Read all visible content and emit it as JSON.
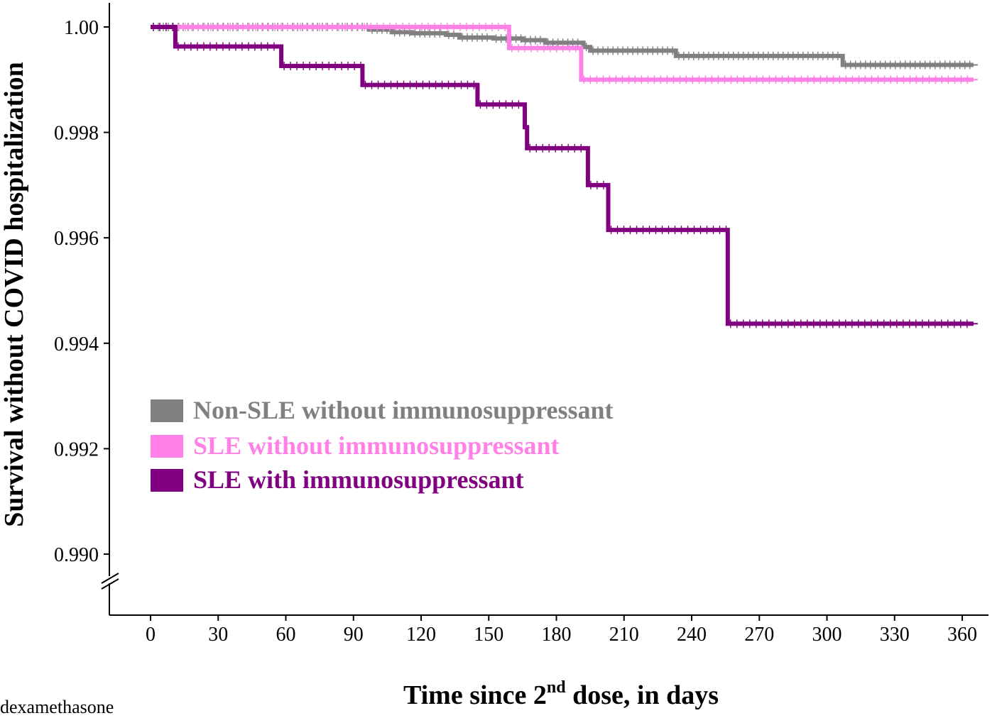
{
  "chart_data": {
    "type": "line",
    "step": true,
    "title": "",
    "xlabel": {
      "prefix": "Time since 2",
      "sup": "nd",
      "suffix": " dose, in days"
    },
    "ylabel": "Survival without COVID hospitalization",
    "xlim": [
      0,
      365
    ],
    "ylim": [
      0.989,
      1.0005
    ],
    "axis_break": true,
    "grid": false,
    "legend_position": "left-center",
    "x_ticks": [
      0,
      30,
      60,
      90,
      120,
      150,
      180,
      210,
      240,
      270,
      300,
      330,
      360
    ],
    "y_ticks": [
      {
        "value": 0.99,
        "label": "0.990"
      },
      {
        "value": 0.992,
        "label": "0.992"
      },
      {
        "value": 0.994,
        "label": "0.994"
      },
      {
        "value": 0.996,
        "label": "0.996"
      },
      {
        "value": 0.998,
        "label": "0.998"
      },
      {
        "value": 1.0,
        "label": "1.00"
      }
    ],
    "series": [
      {
        "name": "Non-SLE without immunosuppressant",
        "color": "#808080",
        "x": [
          0,
          97,
          107,
          116,
          131,
          137,
          152,
          165,
          175,
          192,
          195,
          233,
          307,
          365
        ],
        "y": [
          1.0,
          0.99995,
          0.9999,
          0.99988,
          0.99985,
          0.9998,
          0.99978,
          0.99975,
          0.9997,
          0.99962,
          0.99955,
          0.99945,
          0.99928,
          0.99928
        ]
      },
      {
        "name": "SLE without immunosuppressant",
        "color": "#ff80e6",
        "x": [
          0,
          159,
          191,
          365
        ],
        "y": [
          1.0,
          0.9996,
          0.999,
          0.999
        ]
      },
      {
        "name": "SLE with immunosuppressant",
        "color": "#800080",
        "x": [
          0,
          11,
          58,
          94,
          145,
          166,
          167,
          194,
          203,
          256,
          365
        ],
        "y": [
          1.0,
          0.99963,
          0.99926,
          0.9989,
          0.99853,
          0.9981,
          0.9977,
          0.997,
          0.99615,
          0.99437,
          0.99437
        ]
      }
    ]
  },
  "page": {
    "stray_text": "dexamethasone"
  }
}
